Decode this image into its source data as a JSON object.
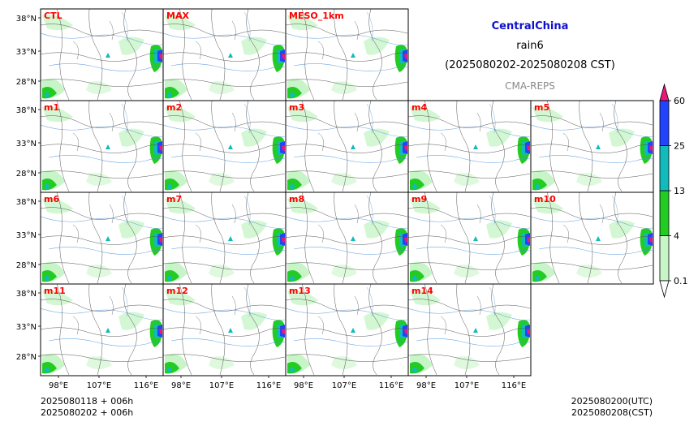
{
  "title": {
    "region": "CentralChina",
    "variable": "rain6",
    "period": "(2025080202-2025080208 CST)",
    "model": "CMA-REPS",
    "region_color": "#1010d0",
    "model_color": "#8a8a8a"
  },
  "panels": [
    {
      "label": "CTL"
    },
    {
      "label": "MAX"
    },
    {
      "label": "MESO_1km"
    },
    {
      "label": "m1"
    },
    {
      "label": "m2"
    },
    {
      "label": "m3"
    },
    {
      "label": "m4"
    },
    {
      "label": "m5"
    },
    {
      "label": "m6"
    },
    {
      "label": "m7"
    },
    {
      "label": "m8"
    },
    {
      "label": "m9"
    },
    {
      "label": "m10"
    },
    {
      "label": "m11"
    },
    {
      "label": "m12"
    },
    {
      "label": "m13"
    },
    {
      "label": "m14"
    }
  ],
  "panel_label_color": "#ff0000",
  "lat_ticks": [
    "38°N",
    "33°N",
    "28°N"
  ],
  "lon_ticks": [
    "98°E",
    "107°E",
    "116°E"
  ],
  "colorbar": {
    "ticks": [
      "0.1",
      "4",
      "13",
      "25",
      "60"
    ],
    "colors": [
      "#c8f5c8",
      "#22cc22",
      "#11bbbb",
      "#2244ff"
    ],
    "over_color": "#e8197a",
    "under_color": "#ffffff"
  },
  "footer": {
    "left_line1": "2025080118  +  006h",
    "left_line2": "2025080202  +  006h",
    "right_line1": "2025080200(UTC)",
    "right_line2": "2025080208(CST)"
  }
}
